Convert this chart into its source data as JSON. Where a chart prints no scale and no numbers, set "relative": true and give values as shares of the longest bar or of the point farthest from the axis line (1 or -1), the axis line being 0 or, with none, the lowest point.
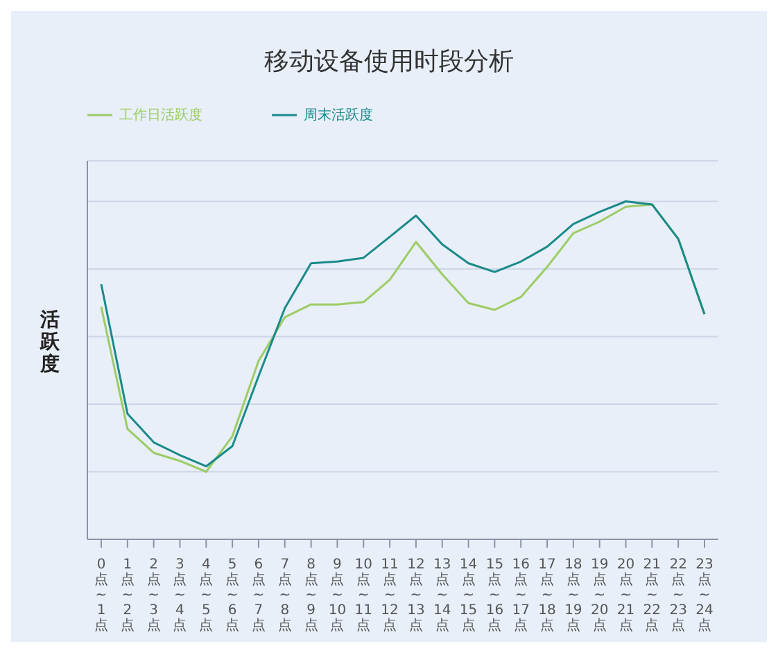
{
  "chart_data": {
    "type": "line",
    "title": "移动设备使用时段分析",
    "ylabel": "活跃度",
    "relative": true,
    "grid": "y",
    "legend": "top left",
    "marker": "none",
    "line_style": "solid",
    "categories": [
      "0点~1点",
      "1点~2点",
      "2点~3点",
      "3点~4点",
      "4点~5点",
      "5点~6点",
      "6点~7点",
      "7点~8点",
      "8点~9点",
      "9点~10点",
      "10点~11点",
      "11点~12点",
      "12点~13点",
      "13点~14点",
      "14点~15点",
      "15点~16点",
      "16点~17点",
      "17点~18点",
      "18点~19点",
      "19点~20点",
      "20点~21点",
      "21点~22点",
      "22点~23点",
      "23点~24点"
    ],
    "series": [
      {
        "name": "工作日活跃度",
        "color": "#9ccc65",
        "values": [
          0.688,
          0.327,
          0.256,
          0.232,
          0.2,
          0.305,
          0.528,
          0.657,
          0.695,
          0.695,
          0.702,
          0.768,
          0.88,
          0.784,
          0.699,
          0.679,
          0.717,
          0.806,
          0.906,
          0.94,
          0.984,
          0.991,
          0.889,
          0.666
        ]
      },
      {
        "name": "周末活跃度",
        "color": "#1a8a8a",
        "values": [
          0.755,
          0.372,
          0.287,
          0.249,
          0.216,
          0.276,
          0.483,
          0.684,
          0.817,
          0.822,
          0.833,
          0.895,
          0.958,
          0.873,
          0.817,
          0.791,
          0.822,
          0.866,
          0.933,
          0.969,
          1,
          0.991,
          0.889,
          0.666
        ]
      }
    ]
  }
}
